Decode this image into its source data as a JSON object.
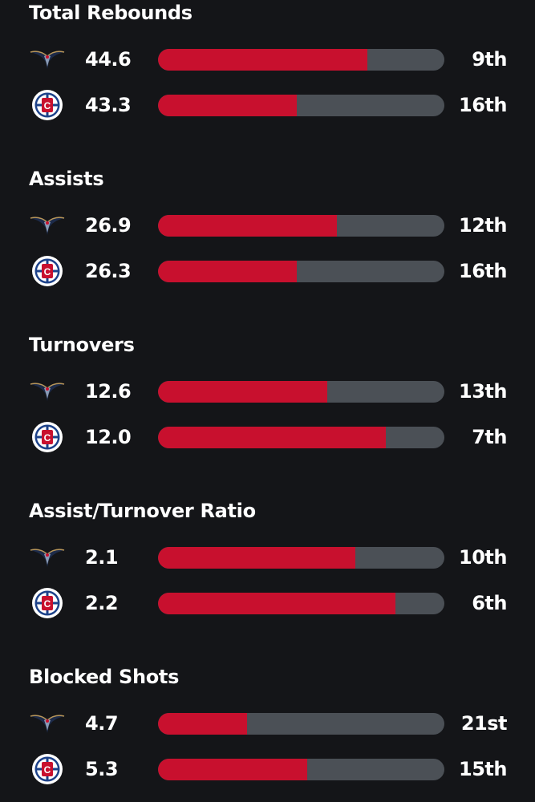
{
  "colors": {
    "background": "#141518",
    "bar_fill": "#c8102e",
    "bar_track": "#4b5056"
  },
  "teams": [
    {
      "name": "New Orleans Pelicans",
      "icon": "pelicans-logo-icon"
    },
    {
      "name": "LA Clippers",
      "icon": "clippers-logo-icon"
    }
  ],
  "stats": [
    {
      "title": "Total Rebounds",
      "rows": [
        {
          "value": "44.6",
          "rank": "9th",
          "fill": 0.73
        },
        {
          "value": "43.3",
          "rank": "16th",
          "fill": 0.485
        }
      ]
    },
    {
      "title": "Assists",
      "rows": [
        {
          "value": "26.9",
          "rank": "12th",
          "fill": 0.625
        },
        {
          "value": "26.3",
          "rank": "16th",
          "fill": 0.485
        }
      ]
    },
    {
      "title": "Turnovers",
      "rows": [
        {
          "value": "12.6",
          "rank": "13th",
          "fill": 0.59
        },
        {
          "value": "12.0",
          "rank": "7th",
          "fill": 0.795
        }
      ]
    },
    {
      "title": "Assist/Turnover Ratio",
      "rows": [
        {
          "value": "2.1",
          "rank": "10th",
          "fill": 0.69
        },
        {
          "value": "2.2",
          "rank": "6th",
          "fill": 0.83
        }
      ]
    },
    {
      "title": "Blocked Shots",
      "rows": [
        {
          "value": "4.7",
          "rank": "21st",
          "fill": 0.31
        },
        {
          "value": "5.3",
          "rank": "15th",
          "fill": 0.52
        }
      ]
    }
  ]
}
